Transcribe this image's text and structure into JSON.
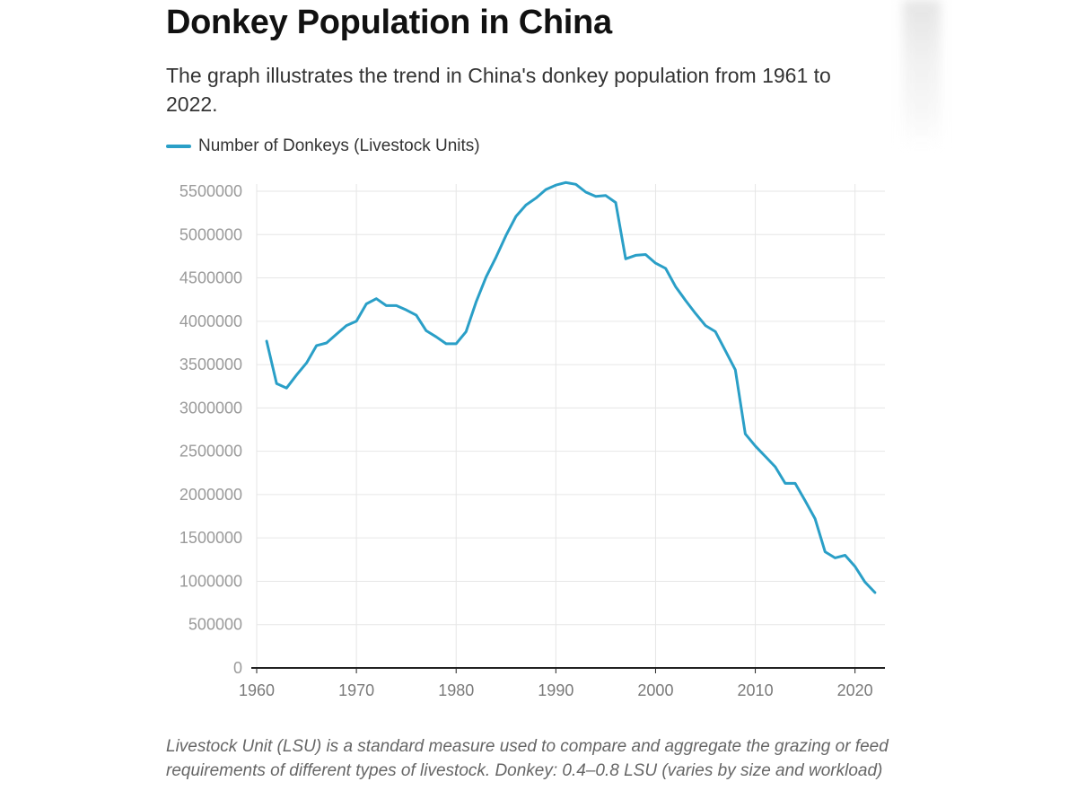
{
  "title": "Donkey Population in China",
  "subtitle": "The graph illustrates the trend in China's donkey population from 1961 to 2022.",
  "footnote": "Livestock Unit (LSU) is a standard measure used to compare and aggregate the grazing or feed requirements of different types of livestock. Donkey: 0.4–0.8 LSU (varies by size and workload)",
  "colors": {
    "line": "#2a9fc7",
    "grid": "#e6e6e6",
    "axis": "#222222"
  },
  "chart_data": {
    "type": "line",
    "title": "Donkey Population in China",
    "xlabel": "",
    "ylabel": "",
    "xlim": [
      1960,
      2023
    ],
    "ylim": [
      0,
      5500000
    ],
    "x_ticks": [
      "1960",
      "1970",
      "1980",
      "1990",
      "2000",
      "2010",
      "2020"
    ],
    "y_ticks": [
      "0",
      "500000",
      "1000000",
      "1500000",
      "2000000",
      "2500000",
      "3000000",
      "3500000",
      "4000000",
      "4500000",
      "5000000",
      "5500000"
    ],
    "grid": true,
    "legend_position": "top-left",
    "series": [
      {
        "name": "Number of Donkeys (Livestock Units)",
        "x": [
          1961,
          1962,
          1963,
          1964,
          1965,
          1966,
          1967,
          1968,
          1969,
          1970,
          1971,
          1972,
          1973,
          1974,
          1975,
          1976,
          1977,
          1978,
          1979,
          1980,
          1981,
          1982,
          1983,
          1984,
          1985,
          1986,
          1987,
          1988,
          1989,
          1990,
          1991,
          1992,
          1993,
          1994,
          1995,
          1996,
          1997,
          1998,
          1999,
          2000,
          2001,
          2002,
          2003,
          2004,
          2005,
          2006,
          2007,
          2008,
          2009,
          2010,
          2011,
          2012,
          2013,
          2014,
          2015,
          2016,
          2017,
          2018,
          2019,
          2020,
          2021,
          2022
        ],
        "values": [
          3770000,
          3280000,
          3230000,
          3380000,
          3520000,
          3720000,
          3750000,
          3850000,
          3950000,
          4000000,
          4200000,
          4260000,
          4180000,
          4180000,
          4130000,
          4070000,
          3890000,
          3820000,
          3740000,
          3740000,
          3880000,
          4220000,
          4510000,
          4740000,
          4990000,
          5210000,
          5340000,
          5420000,
          5520000,
          5570000,
          5600000,
          5580000,
          5490000,
          5440000,
          5450000,
          5370000,
          4720000,
          4760000,
          4770000,
          4670000,
          4610000,
          4400000,
          4240000,
          4090000,
          3950000,
          3880000,
          3660000,
          3440000,
          2700000,
          2560000,
          2440000,
          2320000,
          2130000,
          2130000,
          1930000,
          1720000,
          1340000,
          1270000,
          1300000,
          1170000,
          990000,
          870000
        ]
      }
    ]
  }
}
